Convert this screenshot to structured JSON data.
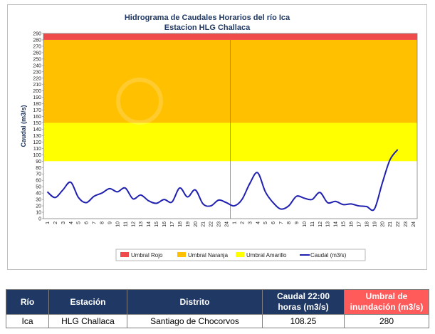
{
  "chart_data": {
    "type": "line",
    "title": "Hidrograma de Caudales Horarios del río Ica",
    "subtitle": "Estacion HLG Challaca",
    "ylabel": "Caudal  (m3/s)",
    "xlabel": "",
    "ylim": [
      0,
      290
    ],
    "y_ticks": [
      0,
      10,
      20,
      30,
      40,
      50,
      60,
      70,
      80,
      90,
      100,
      110,
      120,
      130,
      140,
      150,
      160,
      170,
      180,
      190,
      200,
      210,
      220,
      230,
      240,
      250,
      260,
      270,
      280,
      290
    ],
    "x_ticks": [
      "1",
      "2",
      "3",
      "4",
      "5",
      "6",
      "7",
      "8",
      "9",
      "10",
      "11",
      "12",
      "13",
      "14",
      "15",
      "16",
      "17",
      "18",
      "19",
      "20",
      "21",
      "22",
      "23",
      "24",
      "1",
      "2",
      "3",
      "4",
      "5",
      "6",
      "7",
      "8",
      "9",
      "10",
      "11",
      "12",
      "13",
      "14",
      "15",
      "16",
      "17",
      "18",
      "19",
      "20",
      "21",
      "22",
      "23",
      "24"
    ],
    "bands": [
      {
        "name": "Umbral Rojo",
        "from": 280,
        "to": 290,
        "color": "#f04b4b"
      },
      {
        "name": "Umbral Naranja",
        "from": 150,
        "to": 280,
        "color": "#ffc000"
      },
      {
        "name": "Umbral Amarillo",
        "from": 90,
        "to": 150,
        "color": "#ffff00"
      }
    ],
    "series": [
      {
        "name": "Caudal (m3/s)",
        "color": "#2020b0",
        "values": [
          42,
          33,
          45,
          57,
          33,
          25,
          35,
          40,
          47,
          42,
          48,
          31,
          37,
          28,
          24,
          30,
          26,
          48,
          34,
          45,
          23,
          20,
          29,
          25,
          20,
          30,
          55,
          72,
          42,
          25,
          15,
          20,
          35,
          32,
          30,
          41,
          25,
          27,
          22,
          23,
          20,
          19,
          15,
          55,
          92,
          108.25
        ]
      }
    ],
    "legend_position": "bottom",
    "grid": false
  },
  "table": {
    "headers": [
      "Río",
      "Estación",
      "Distrito",
      "Caudal 22:00 horas (m3/s)",
      "Umbral de inundación (m3/s)"
    ],
    "row": [
      "Ica",
      "HLG Challaca",
      "Santiago de Chocorvos",
      "108.25",
      "280"
    ]
  }
}
